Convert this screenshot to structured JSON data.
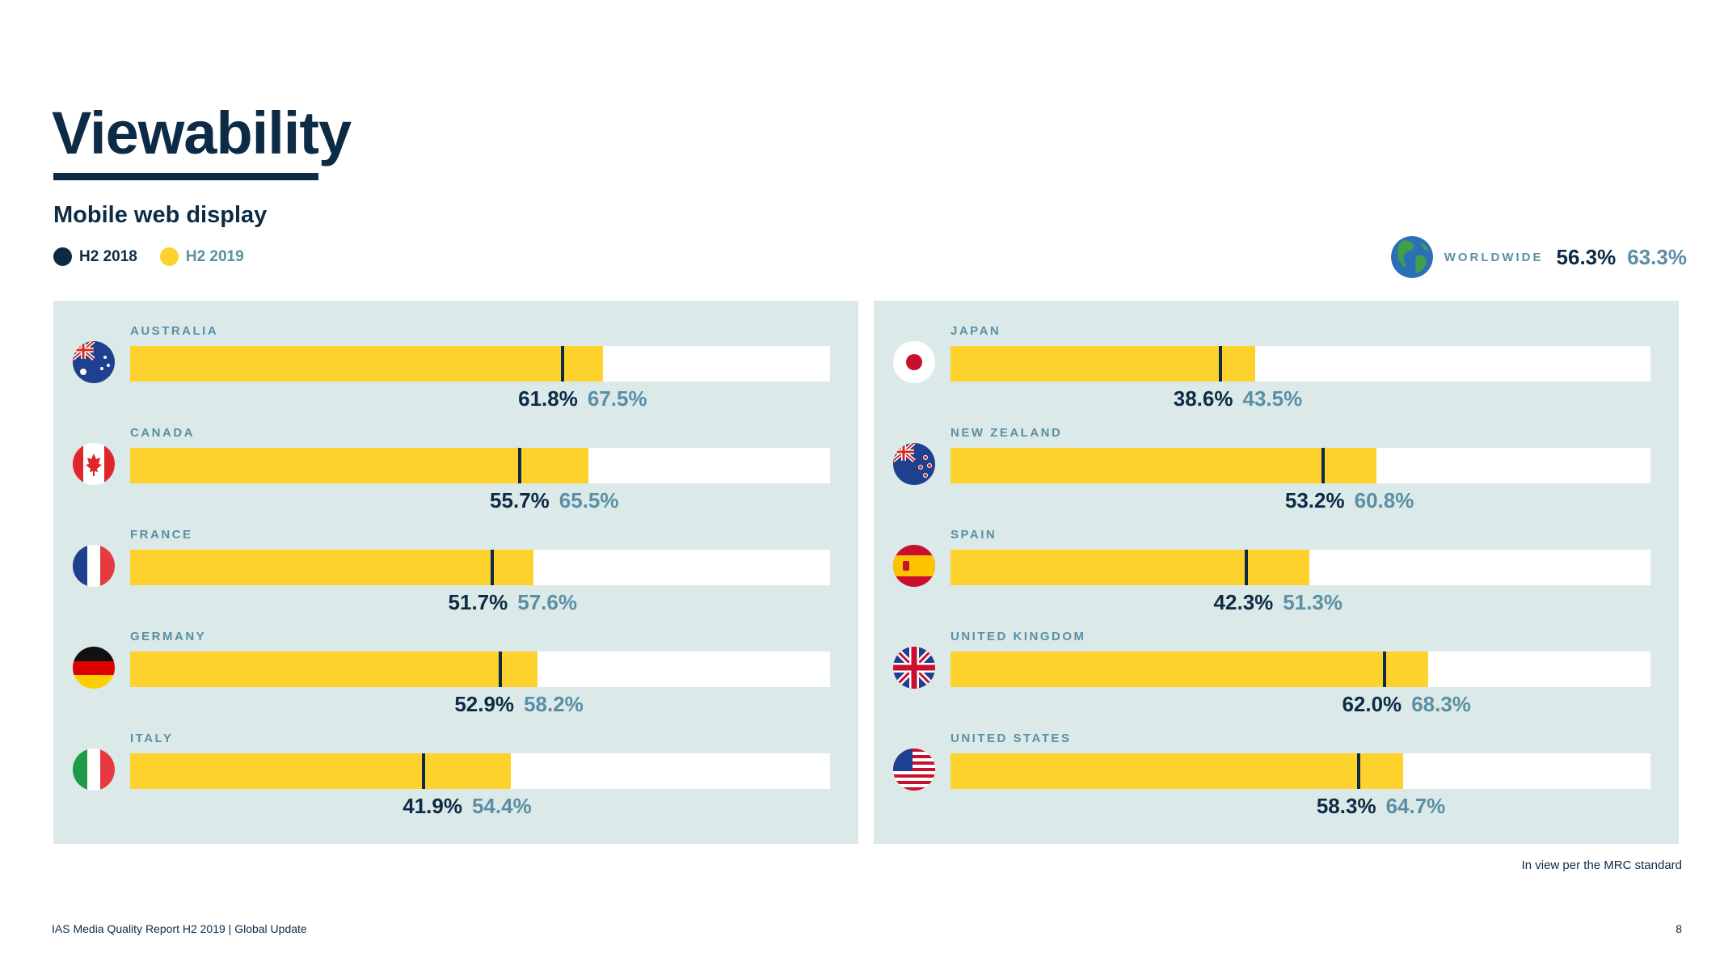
{
  "title": "Viewability",
  "subtitle": "Mobile web display",
  "legend": {
    "h2_2018": "H2 2018",
    "h2_2019": "H2 2019"
  },
  "colors": {
    "h2_2018": "#0d2b45",
    "h2_2019": "#fdd22d",
    "panel": "#dce9e9",
    "accent_text": "#5a8fa5"
  },
  "worldwide": {
    "label": "WORLDWIDE",
    "h2_2018": "56.3%",
    "h2_2019": "63.3%",
    "icon": "globe-icon"
  },
  "chart_data": {
    "type": "bar",
    "title": "Viewability — Mobile web display",
    "series": [
      {
        "name": "H2 2018",
        "display": "marker"
      },
      {
        "name": "H2 2019",
        "display": "bar"
      }
    ],
    "xlim": [
      0,
      100
    ],
    "unit": "%",
    "panels": [
      {
        "countries": [
          {
            "name": "AUSTRALIA",
            "flag": "au",
            "h2_2018": 61.8,
            "h2_2019": 67.5
          },
          {
            "name": "CANADA",
            "flag": "ca",
            "h2_2018": 55.7,
            "h2_2019": 65.5
          },
          {
            "name": "FRANCE",
            "flag": "fr",
            "h2_2018": 51.7,
            "h2_2019": 57.6
          },
          {
            "name": "GERMANY",
            "flag": "de",
            "h2_2018": 52.9,
            "h2_2019": 58.2
          },
          {
            "name": "ITALY",
            "flag": "it",
            "h2_2018": 41.9,
            "h2_2019": 54.4
          }
        ]
      },
      {
        "countries": [
          {
            "name": "JAPAN",
            "flag": "jp",
            "h2_2018": 38.6,
            "h2_2019": 43.5
          },
          {
            "name": "NEW ZEALAND",
            "flag": "nz",
            "h2_2018": 53.2,
            "h2_2019": 60.8
          },
          {
            "name": "SPAIN",
            "flag": "es",
            "h2_2018": 42.3,
            "h2_2019": 51.3
          },
          {
            "name": "UNITED KINGDOM",
            "flag": "gb",
            "h2_2018": 62.0,
            "h2_2019": 68.3
          },
          {
            "name": "UNITED STATES",
            "flag": "us",
            "h2_2018": 58.3,
            "h2_2019": 64.7
          }
        ]
      }
    ]
  },
  "note": "In view per the MRC standard",
  "footer": {
    "text": "IAS Media Quality Report H2 2019   |   Global Update",
    "page": "8"
  }
}
